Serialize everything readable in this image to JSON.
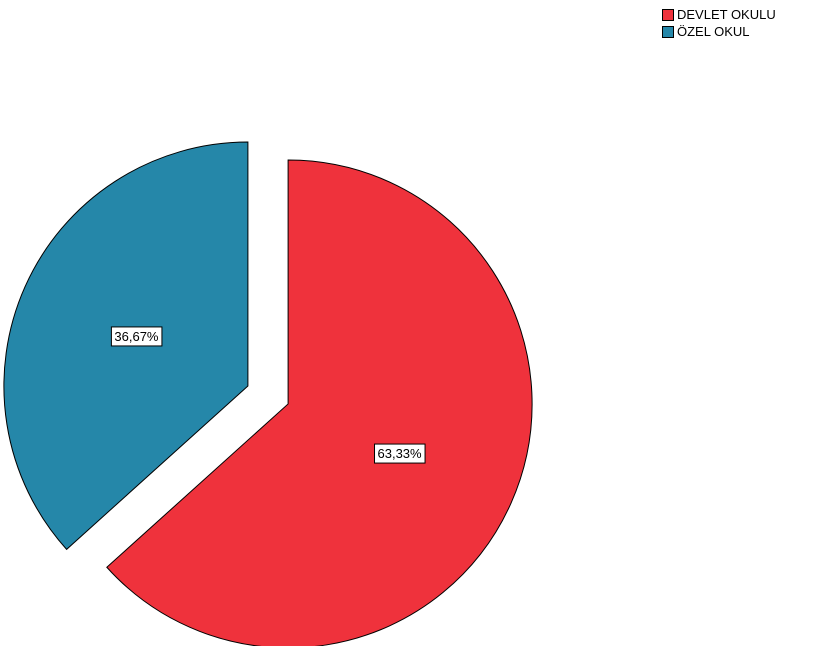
{
  "chart_data": {
    "type": "pie",
    "categories": [
      "DEVLET OKULU",
      "ÖZEL OKUL"
    ],
    "values": [
      63.33,
      36.67
    ],
    "data_labels": [
      "63,33%",
      "36,67%"
    ],
    "colors": [
      "#ef323c",
      "#2587a9"
    ],
    "exploded": true,
    "legend_position": "top-right"
  },
  "legend": {
    "items": [
      {
        "label": "DEVLET OKULU",
        "color": "#ef323c"
      },
      {
        "label": "ÖZEL OKUL",
        "color": "#2587a9"
      }
    ]
  }
}
